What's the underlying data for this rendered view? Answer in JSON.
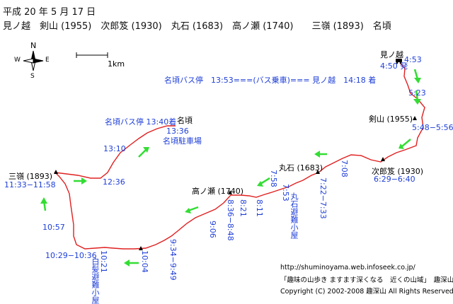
{
  "header": {
    "date": "平成 20 年 5 月 17 日",
    "route": "見ノ越　剣山 (1955)　次郎笈 (1930)　丸石 (1683)　高ノ瀬 (1740)　　三嶺 (1893)　名頃"
  },
  "compass": {
    "n": "N",
    "s": "S",
    "e": "E",
    "w": "W"
  },
  "scale": {
    "label": "1km"
  },
  "bus_note": "名頃バス停　13:53===(バス乗車)=== 見ノ越　14:18 着",
  "places": {
    "minokoshi": "見ノ越",
    "tsurugi": "剣山 (1955)",
    "jirogyu": "次郎笈 (1930)",
    "maruishi": "丸石 (1683)",
    "takanose": "高ノ瀬 (1740)",
    "sanrei": "三嶺 (1893)",
    "nakoro": "名頃",
    "nakoro_busstop": "名頃バス停 13:40着",
    "nakoro_parking": "名頃駐車場",
    "maruishi_hut": "丸石避難小屋",
    "shiraga_hut": "白髪避難小屋"
  },
  "times": {
    "start": "4:50 発",
    "t453": "4:53",
    "t523": "5:23",
    "tsurugi": "5:48−5:56",
    "jirogyu": "6:29−6:40",
    "t708": "7:08",
    "maruishi": "7:22−7:33",
    "t753": "7:53",
    "t758": "7:58",
    "t811": "8:11",
    "t821": "8:21",
    "takanose": "8:36−8:48",
    "t906": "9:06",
    "t934": "9:34−9:49",
    "t1004": "10:04",
    "t1021": "10:21",
    "t1029": "10:29−10:36",
    "t1057": "10:57",
    "sanrei": "11:33−11:58",
    "t1236": "12:36",
    "t1310": "13:10",
    "nakoro": "13:36"
  },
  "footer": {
    "url": "http://shuminoyama.web.infoseek.co.jp/",
    "site": "「趣味の山歩き ますます深くなる　近くの山域」　趣深山",
    "copyright": "Copyright (C) 2002-2008 趣深山 All Rights Reserved"
  },
  "colors": {
    "route": "#e02020",
    "arrow": "#33dd33",
    "time": "#1f3fd8"
  }
}
